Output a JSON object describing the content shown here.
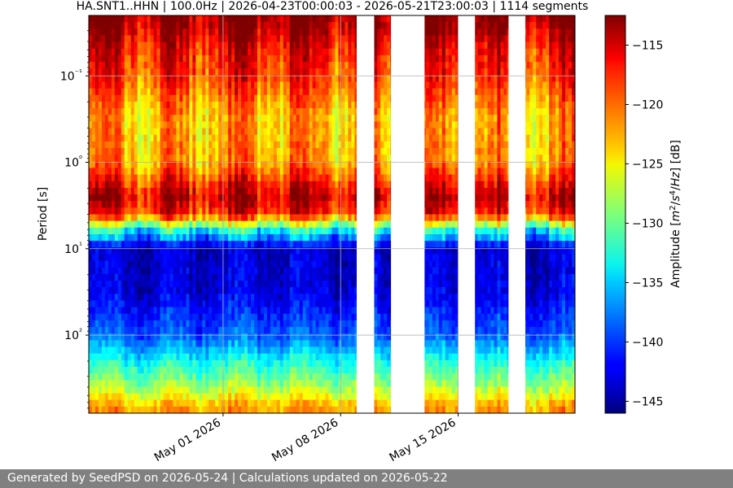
{
  "footer_text": "Generated by SeedPSD on 2026-05-24 | Calculations updated on 2026-05-22",
  "chart_data": {
    "type": "heatmap",
    "title": "HA.SNT1..HHN | 100.0Hz | 2026-04-23T00:00:03 - 2026-05-21T23:00:03 | 1114 segments",
    "xlabel": "",
    "ylabel": "Period [s]",
    "colorbar_label": "Amplitude [m²/s⁴/Hz] [dB]",
    "colormap": "jet",
    "color_range": [
      -146,
      -112.5
    ],
    "colorbar_ticks": [
      -115,
      -120,
      -125,
      -130,
      -135,
      -140,
      -145
    ],
    "colorbar_tick_labels": [
      "−115",
      "−120",
      "−125",
      "−130",
      "−135",
      "−140",
      "−145"
    ],
    "x_range": [
      "2026-04-23",
      "2026-05-21T23:00"
    ],
    "x_ticks": [
      "2026-05-01",
      "2026-05-08",
      "2026-05-15"
    ],
    "x_tick_labels": [
      "May 01 2026",
      "May 08 2026",
      "May 15 2026"
    ],
    "y_scale": "log",
    "y_inverted": true,
    "y_range": [
      0.02,
      800
    ],
    "y_ticks": [
      0.1,
      1,
      10,
      100
    ],
    "y_tick_labels": [
      "10⁻¹",
      "10⁰",
      "10¹",
      "10²"
    ],
    "grid": true,
    "data_gaps": [
      [
        "2026-05-08T23:00",
        "2026-05-10T00:00"
      ],
      [
        "2026-05-11T00:00",
        "2026-05-13T00:00"
      ],
      [
        "2026-05-15T00:00",
        "2026-05-16T00:00"
      ],
      [
        "2026-05-18T00:00",
        "2026-05-19T00:00"
      ]
    ],
    "period_band_levels": [
      {
        "period": 0.025,
        "level_db": -113.5
      },
      {
        "period": 0.05,
        "level_db": -117
      },
      {
        "period": 0.1,
        "level_db": -118.5
      },
      {
        "period": 0.3,
        "level_db": -123
      },
      {
        "period": 1.0,
        "level_db": -122
      },
      {
        "period": 2.5,
        "level_db": -115
      },
      {
        "period": 4.0,
        "level_db": -118
      },
      {
        "period": 6.0,
        "level_db": -133
      },
      {
        "period": 10,
        "level_db": -143.5
      },
      {
        "period": 30,
        "level_db": -143
      },
      {
        "period": 100,
        "level_db": -139
      },
      {
        "period": 200,
        "level_db": -133
      },
      {
        "period": 400,
        "level_db": -128
      },
      {
        "period": 700,
        "level_db": -122
      }
    ]
  }
}
